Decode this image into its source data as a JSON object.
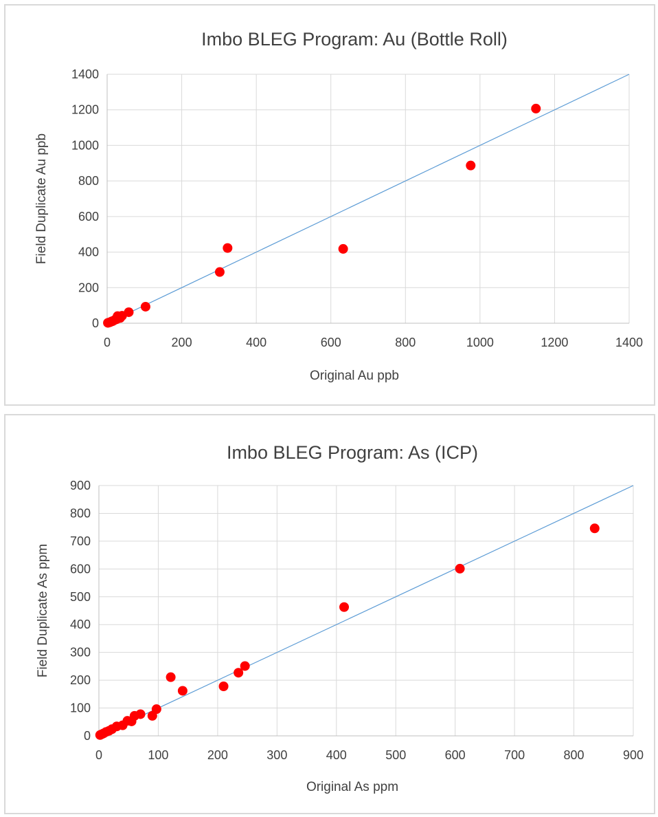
{
  "chart_data": [
    {
      "type": "scatter",
      "title": "Imbo BLEG Program: Au (Bottle Roll)",
      "xlabel": "Original Au ppb",
      "ylabel": "Field Duplicate Au ppb",
      "xlim": [
        0,
        1400
      ],
      "ylim": [
        0,
        1400
      ],
      "x_ticks": [
        "0",
        "200",
        "400",
        "600",
        "800",
        "1000",
        "1200",
        "1400"
      ],
      "y_ticks": [
        "0",
        "200",
        "400",
        "600",
        "800",
        "1000",
        "1200",
        "1400"
      ],
      "grid": true,
      "marker_color": "#ff0000",
      "reference_line": {
        "type": "y=x",
        "color": "#5b9bd5"
      },
      "points": [
        {
          "x": 2,
          "y": 2
        },
        {
          "x": 5,
          "y": 4
        },
        {
          "x": 8,
          "y": 6
        },
        {
          "x": 12,
          "y": 10
        },
        {
          "x": 15,
          "y": 12
        },
        {
          "x": 20,
          "y": 18
        },
        {
          "x": 25,
          "y": 22
        },
        {
          "x": 28,
          "y": 40
        },
        {
          "x": 35,
          "y": 30
        },
        {
          "x": 40,
          "y": 42
        },
        {
          "x": 58,
          "y": 62
        },
        {
          "x": 103,
          "y": 93
        },
        {
          "x": 302,
          "y": 288
        },
        {
          "x": 323,
          "y": 423
        },
        {
          "x": 633,
          "y": 418
        },
        {
          "x": 975,
          "y": 887
        },
        {
          "x": 1150,
          "y": 1207
        }
      ]
    },
    {
      "type": "scatter",
      "title": "Imbo BLEG Program: As (ICP)",
      "xlabel": "Original As ppm",
      "ylabel": "Field Duplicate As ppm",
      "xlim": [
        0,
        900
      ],
      "ylim": [
        0,
        900
      ],
      "x_ticks": [
        "0",
        "100",
        "200",
        "300",
        "400",
        "500",
        "600",
        "700",
        "800",
        "900"
      ],
      "y_ticks": [
        "0",
        "100",
        "200",
        "300",
        "400",
        "500",
        "600",
        "700",
        "800",
        "900"
      ],
      "grid": true,
      "marker_color": "#ff0000",
      "reference_line": {
        "type": "y=x",
        "color": "#5b9bd5"
      },
      "points": [
        {
          "x": 2,
          "y": 3
        },
        {
          "x": 5,
          "y": 6
        },
        {
          "x": 8,
          "y": 9
        },
        {
          "x": 12,
          "y": 14
        },
        {
          "x": 17,
          "y": 18
        },
        {
          "x": 22,
          "y": 24
        },
        {
          "x": 30,
          "y": 34
        },
        {
          "x": 40,
          "y": 38
        },
        {
          "x": 48,
          "y": 54
        },
        {
          "x": 55,
          "y": 52
        },
        {
          "x": 60,
          "y": 72
        },
        {
          "x": 70,
          "y": 78
        },
        {
          "x": 90,
          "y": 72
        },
        {
          "x": 97,
          "y": 96
        },
        {
          "x": 121,
          "y": 211
        },
        {
          "x": 141,
          "y": 162
        },
        {
          "x": 210,
          "y": 178
        },
        {
          "x": 235,
          "y": 227
        },
        {
          "x": 246,
          "y": 251
        },
        {
          "x": 413,
          "y": 463
        },
        {
          "x": 608,
          "y": 601
        },
        {
          "x": 835,
          "y": 746
        }
      ]
    }
  ]
}
